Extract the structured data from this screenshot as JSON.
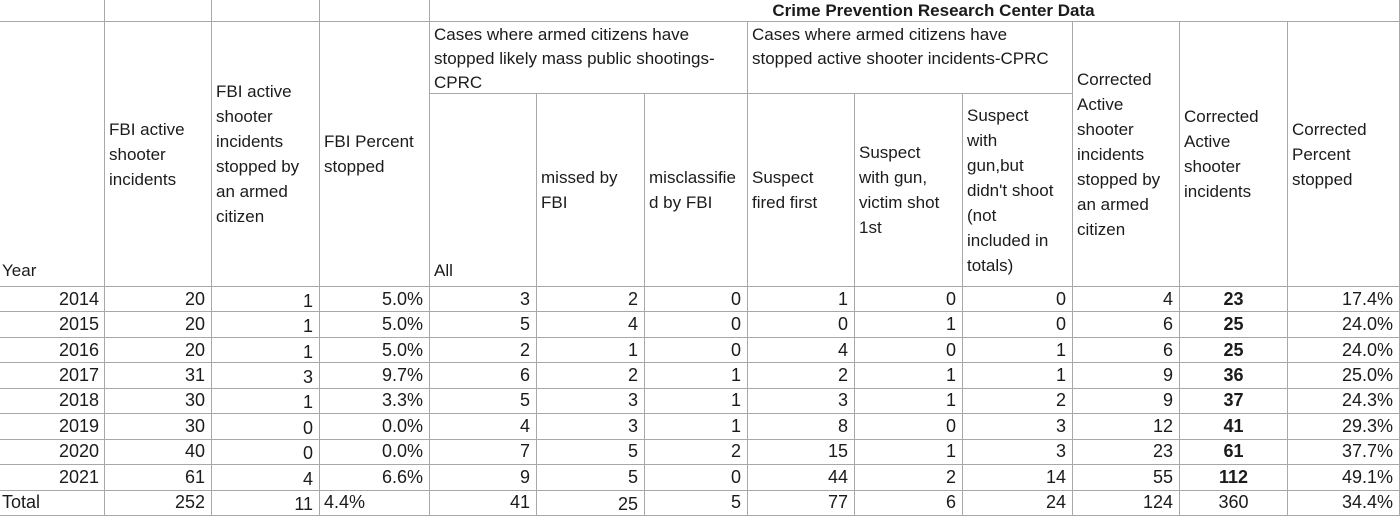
{
  "chart_data": {
    "type": "table",
    "title": "Crime Prevention Research Center Data",
    "column_groups": [
      {
        "label": "Cases where armed citizens have stopped likely mass public shootings-CPRC",
        "columns": [
          4,
          5,
          6
        ]
      },
      {
        "label": "Cases where armed citizens have stopped active shooter incidents-CPRC",
        "columns": [
          7,
          8,
          9
        ]
      }
    ],
    "columns": [
      "Year",
      "FBI active shooter incidents",
      "FBI active shooter incidents stopped by an armed citizen",
      "FBI Percent stopped",
      "All",
      "missed by FBI",
      "misclassified by FBI",
      "Suspect fired first",
      "Suspect with gun, victim shot 1st",
      "Suspect with gun,but didn't shoot (not included in totals)",
      "Corrected Active shooter incidents stopped by an armed citizen",
      "Corrected Active shooter incidents",
      "Corrected Percent stopped"
    ],
    "rows": [
      [
        "2014",
        "20",
        "1",
        "5.0%",
        "3",
        "2",
        "0",
        "1",
        "0",
        "0",
        "4",
        "23",
        "17.4%"
      ],
      [
        "2015",
        "20",
        "1",
        "5.0%",
        "5",
        "4",
        "0",
        "0",
        "1",
        "0",
        "6",
        "25",
        "24.0%"
      ],
      [
        "2016",
        "20",
        "1",
        "5.0%",
        "2",
        "1",
        "0",
        "4",
        "0",
        "1",
        "6",
        "25",
        "24.0%"
      ],
      [
        "2017",
        "31",
        "3",
        "9.7%",
        "6",
        "2",
        "1",
        "2",
        "1",
        "1",
        "9",
        "36",
        "25.0%"
      ],
      [
        "2018",
        "30",
        "1",
        "3.3%",
        "5",
        "3",
        "1",
        "3",
        "1",
        "2",
        "9",
        "37",
        "24.3%"
      ],
      [
        "2019",
        "30",
        "0",
        "0.0%",
        "4",
        "3",
        "1",
        "8",
        "0",
        "3",
        "12",
        "41",
        "29.3%"
      ],
      [
        "2020",
        "40",
        "0",
        "0.0%",
        "7",
        "5",
        "2",
        "15",
        "1",
        "3",
        "23",
        "61",
        "37.7%"
      ],
      [
        "2021",
        "61",
        "4",
        "6.6%",
        "9",
        "5",
        "0",
        "44",
        "2",
        "14",
        "55",
        "112",
        "49.1%"
      ],
      [
        "Total",
        "252",
        "11",
        "4.4%",
        "41",
        "25",
        "5",
        "77",
        "6",
        "24",
        "124",
        "360",
        "34.4%"
      ]
    ],
    "style": {
      "grid_color": "#a8a8a8",
      "text_color": "#1b1b1b",
      "background": "#ffffff",
      "bold_column": "Corrected Active shooter incidents"
    }
  }
}
